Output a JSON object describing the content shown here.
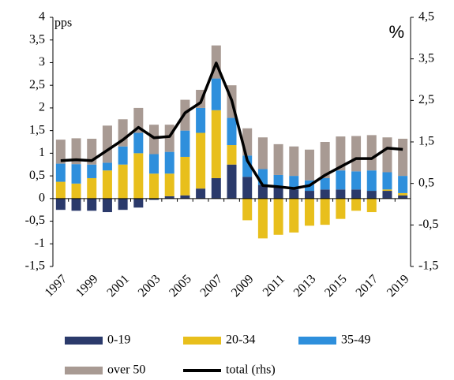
{
  "chart_data": {
    "type": "bar",
    "stacked": true,
    "y_label": "pps",
    "y2_label": "%",
    "categories": [
      "1997",
      null,
      "1999",
      null,
      "2001",
      null,
      "2003",
      null,
      "2005",
      null,
      "2007",
      null,
      "2009",
      null,
      "2011",
      null,
      "2013",
      null,
      "2015",
      null,
      "2017",
      null,
      "2019"
    ],
    "series": [
      {
        "name": "0-19",
        "color": "#2b3a6b",
        "values": [
          -0.25,
          -0.27,
          -0.27,
          -0.3,
          -0.25,
          -0.2,
          -0.03,
          0.05,
          0.07,
          0.22,
          0.45,
          0.75,
          0.48,
          0.3,
          0.27,
          0.2,
          0.17,
          0.2,
          0.2,
          0.2,
          0.17,
          0.17,
          0.07
        ]
      },
      {
        "name": "20-34",
        "color": "#e8bf1c",
        "values": [
          0.37,
          0.33,
          0.45,
          0.62,
          0.75,
          1.0,
          0.55,
          0.5,
          0.85,
          1.23,
          1.5,
          0.43,
          -0.48,
          -0.88,
          -0.8,
          -0.75,
          -0.6,
          -0.58,
          -0.45,
          -0.27,
          -0.3,
          0.03,
          0.05
        ]
      },
      {
        "name": "35-49",
        "color": "#2e8fdc",
        "values": [
          0.4,
          0.43,
          0.3,
          0.17,
          0.4,
          0.45,
          0.43,
          0.48,
          0.58,
          0.55,
          0.7,
          0.6,
          0.47,
          0.35,
          0.25,
          0.3,
          0.23,
          0.25,
          0.42,
          0.4,
          0.45,
          0.38,
          0.38
        ]
      },
      {
        "name": "over 50",
        "color": "#a89a93",
        "values": [
          0.53,
          0.57,
          0.57,
          0.82,
          0.6,
          0.55,
          0.65,
          0.6,
          0.68,
          0.4,
          0.73,
          0.72,
          0.6,
          0.7,
          0.68,
          0.65,
          0.68,
          0.8,
          0.75,
          0.78,
          0.78,
          0.77,
          0.82
        ]
      },
      {
        "name": "total (rhs)",
        "color": "#000000",
        "type": "line",
        "axis": "y2",
        "values": [
          1.05,
          1.07,
          1.05,
          1.3,
          1.55,
          1.85,
          1.6,
          1.63,
          2.2,
          2.45,
          3.4,
          2.5,
          1.05,
          0.45,
          0.42,
          0.38,
          0.45,
          0.7,
          0.9,
          1.1,
          1.1,
          1.35,
          1.32
        ]
      }
    ],
    "ylim": [
      -1.5,
      4
    ],
    "yticks": [
      {
        "value": -1.5,
        "label": "-1,5"
      },
      -1,
      {
        "value": -0.5,
        "label": "-0,5"
      },
      0,
      {
        "value": 0.5,
        "label": "0,5"
      },
      1,
      {
        "value": 1.5,
        "label": "1,5"
      },
      2,
      {
        "value": 2.5,
        "label": "2,5"
      },
      3,
      {
        "value": 3.5,
        "label": "3,5"
      },
      4
    ],
    "y2lim": [
      -1.5,
      4.5
    ],
    "y2ticks": [
      {
        "value": -1.5,
        "label": "-1,5"
      },
      {
        "value": -0.5,
        "label": "-0,5"
      },
      {
        "value": 0.5,
        "label": "0,5"
      },
      {
        "value": 1.5,
        "label": "1,5"
      },
      {
        "value": 2.5,
        "label": "2,5"
      },
      {
        "value": 3.5,
        "label": "3,5"
      },
      {
        "value": 4.5,
        "label": "4,5"
      }
    ],
    "grid": false
  }
}
